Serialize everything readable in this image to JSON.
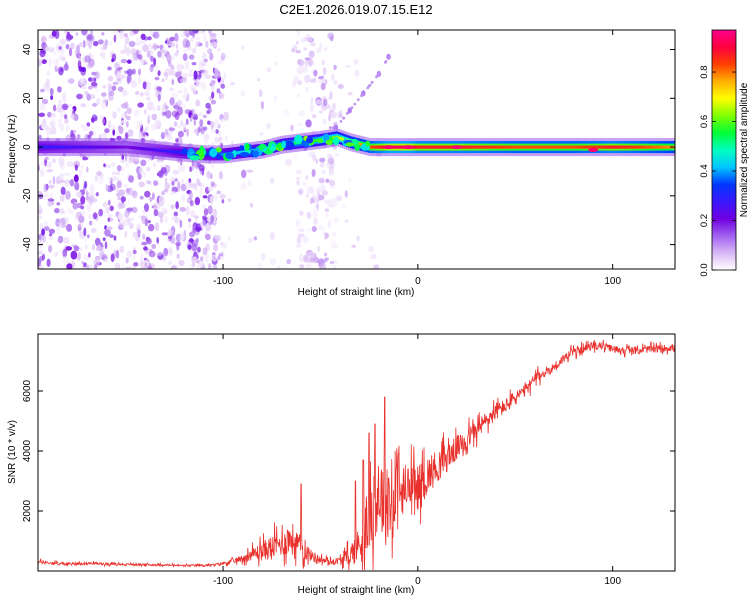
{
  "page_title": "C2E1.2026.019.07.15.E12",
  "chart_data": [
    {
      "type": "heatmap",
      "title": "C2E1.2026.019.07.15.E12",
      "xlabel": "Height of straight line (km)",
      "ylabel": "Frequency (Hz)",
      "xlim": [
        -195,
        132
      ],
      "ylim": [
        -50,
        48
      ],
      "x_ticks": [
        -100,
        0,
        100
      ],
      "x_tick_labels": [
        "-100",
        "0",
        "100"
      ],
      "y_ticks": [
        -40,
        -20,
        0,
        20,
        40
      ],
      "y_tick_labels": [
        "-40",
        "-20",
        "0",
        "20",
        "40"
      ],
      "ridge": {
        "name": "dominant frequency band",
        "x": [
          -195,
          -170,
          -150,
          -125,
          -110,
          -100,
          -90,
          -80,
          -70,
          -60,
          -50,
          -42,
          -35,
          -25,
          -15,
          -5,
          0,
          20,
          50,
          80,
          100,
          132
        ],
        "y": [
          0,
          0,
          0,
          -2,
          -3,
          -3,
          -2,
          -1,
          1,
          2,
          3,
          4,
          2,
          0,
          0,
          0,
          0,
          0,
          0,
          0,
          0,
          0
        ],
        "amplitude": [
          0.3,
          0.25,
          0.2,
          0.3,
          0.35,
          0.4,
          0.45,
          0.5,
          0.55,
          0.55,
          0.6,
          0.65,
          0.75,
          0.85,
          0.95,
          0.95,
          0.9,
          0.9,
          0.85,
          0.85,
          0.9,
          0.8
        ]
      },
      "branch": {
        "name": "rising line",
        "x": [
          -42,
          -35,
          -28,
          -20,
          -15
        ],
        "y": [
          8,
          15,
          22,
          30,
          37
        ]
      },
      "colorbar": {
        "label": "Normalized spectral amplitude",
        "min": 0.0,
        "max": 0.97,
        "ticks": [
          0.0,
          0.2,
          0.4,
          0.6,
          0.8
        ],
        "tick_labels": [
          "0.0",
          "0.2",
          "0.4",
          "0.6",
          "0.8"
        ],
        "colors": [
          "#ffffff",
          "#d9b8f5",
          "#a060f0",
          "#7000e0",
          "#3a18ff",
          "#0038ff",
          "#00c8ff",
          "#00ffc0",
          "#00ff38",
          "#80ff00",
          "#ffff00",
          "#ffb000",
          "#ff4000",
          "#ff0040",
          "#ff008c"
        ]
      }
    },
    {
      "type": "line",
      "xlabel": "Height of straight line (km)",
      "ylabel": "SNR (10 * v/v)",
      "xlim": [
        -195,
        132
      ],
      "ylim": [
        0,
        7900
      ],
      "x_ticks": [
        -100,
        0,
        100
      ],
      "x_tick_labels": [
        "-100",
        "0",
        "100"
      ],
      "y_ticks": [
        2000,
        4000,
        6000
      ],
      "y_tick_labels": [
        "2000",
        "4000",
        "6000"
      ],
      "series": [
        {
          "name": "SNR",
          "color": "#e8312c",
          "x": [
            -195,
            -180,
            -170,
            -160,
            -150,
            -140,
            -130,
            -120,
            -110,
            -105,
            -100,
            -95,
            -90,
            -85,
            -80,
            -75,
            -70,
            -65,
            -60,
            -55,
            -50,
            -45,
            -40,
            -35,
            -30,
            -25,
            -20,
            -15,
            -10,
            -5,
            0,
            5,
            10,
            15,
            20,
            25,
            30,
            35,
            40,
            45,
            50,
            55,
            60,
            65,
            70,
            75,
            80,
            85,
            90,
            95,
            100,
            110,
            120,
            132
          ],
          "y": [
            300,
            230,
            260,
            240,
            220,
            210,
            200,
            180,
            190,
            200,
            260,
            320,
            420,
            560,
            650,
            800,
            900,
            1100,
            800,
            520,
            380,
            300,
            350,
            500,
            900,
            1700,
            2600,
            2100,
            2500,
            2600,
            2800,
            3200,
            3500,
            3800,
            4100,
            4400,
            4700,
            5000,
            5300,
            5500,
            5800,
            6000,
            6400,
            6600,
            6800,
            7100,
            7300,
            7400,
            7500,
            7500,
            7400,
            7350,
            7400,
            7450
          ],
          "noise": [
            80,
            60,
            50,
            50,
            40,
            40,
            40,
            40,
            40,
            40,
            60,
            100,
            150,
            250,
            400,
            500,
            500,
            700,
            500,
            250,
            150,
            120,
            150,
            400,
            800,
            1300,
            1600,
            1800,
            1400,
            1100,
            900,
            800,
            700,
            600,
            500,
            450,
            400,
            400,
            350,
            300,
            300,
            250,
            250,
            200,
            200,
            200,
            180,
            160,
            150,
            150,
            150,
            150,
            150,
            150
          ],
          "spikes": [
            [
              -60,
              2900
            ],
            [
              -32,
              3000
            ],
            [
              -28,
              3700
            ],
            [
              -25,
              4600
            ],
            [
              -22,
              4900
            ],
            [
              -17,
              5800
            ],
            [
              -15,
              3100
            ],
            [
              -10,
              3900
            ],
            [
              -5,
              3400
            ]
          ]
        }
      ]
    }
  ]
}
